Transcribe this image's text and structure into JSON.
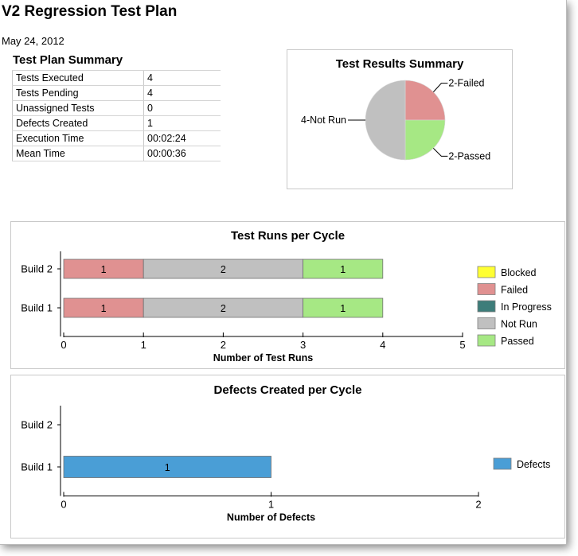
{
  "report": {
    "title": "V2 Regression Test Plan",
    "date": "May 24, 2012"
  },
  "summary": {
    "heading": "Test Plan Summary",
    "rows": [
      {
        "label": "Tests Executed",
        "value": "4"
      },
      {
        "label": "Tests Pending",
        "value": "4"
      },
      {
        "label": "Unassigned Tests",
        "value": "0"
      },
      {
        "label": "Defects Created",
        "value": "1"
      },
      {
        "label": "Execution Time",
        "value": "00:02:24"
      },
      {
        "label": "Mean Time",
        "value": "00:00:36"
      }
    ]
  },
  "chart_data": [
    {
      "type": "pie",
      "title": "Test Results Summary",
      "labels": [
        "Failed",
        "Passed",
        "Not Run"
      ],
      "values": [
        2,
        2,
        4
      ],
      "slice_labels": [
        "2-Failed",
        "2-Passed",
        "4-Not Run"
      ],
      "colors": [
        "#e09191",
        "#a6e884",
        "#c0c0c0"
      ]
    },
    {
      "type": "bar",
      "orientation": "horizontal",
      "stacked": true,
      "title": "Test Runs per Cycle",
      "categories": [
        "Build 2",
        "Build 1"
      ],
      "series": [
        {
          "name": "Blocked",
          "color": "#ffff33",
          "values": [
            0,
            0
          ]
        },
        {
          "name": "Failed",
          "color": "#e09191",
          "values": [
            1,
            1
          ]
        },
        {
          "name": "In Progress",
          "color": "#3d7d7a",
          "values": [
            0,
            0
          ]
        },
        {
          "name": "Not Run",
          "color": "#c0c0c0",
          "values": [
            2,
            2
          ]
        },
        {
          "name": "Passed",
          "color": "#a6e884",
          "values": [
            1,
            1
          ]
        }
      ],
      "xlabel": "Number of Test Runs",
      "xlim": [
        0,
        5
      ],
      "xticks": [
        "0",
        "1",
        "2",
        "3",
        "4",
        "5"
      ],
      "legend_position": "right"
    },
    {
      "type": "bar",
      "orientation": "horizontal",
      "title": "Defects Created per Cycle",
      "categories": [
        "Build 2",
        "Build 1"
      ],
      "series": [
        {
          "name": "Defects",
          "color": "#4a9ed6",
          "values": [
            0,
            1
          ]
        }
      ],
      "xlabel": "Number of Defects",
      "xlim": [
        0,
        2
      ],
      "xticks": [
        "0",
        "1",
        "2"
      ],
      "legend_position": "right"
    }
  ]
}
